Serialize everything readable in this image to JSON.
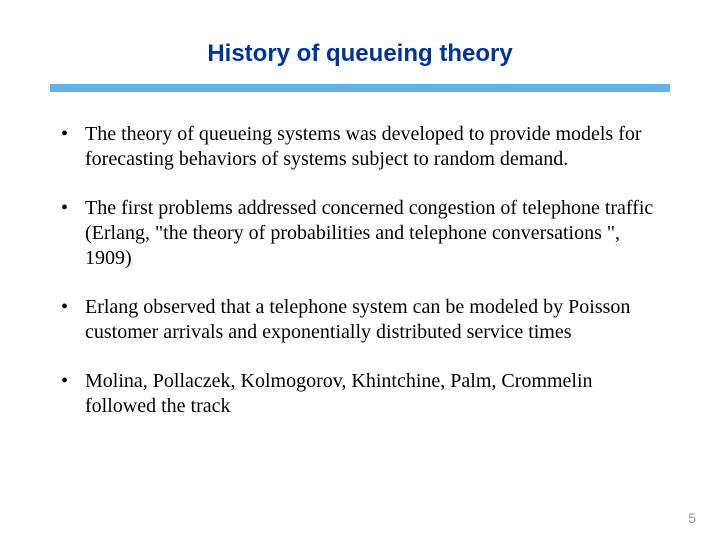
{
  "slide": {
    "title": "History of queueing theory",
    "title_color": "#003399",
    "title_fontsize": 24,
    "divider_color": "#66b2e8",
    "bullets": [
      "The theory of queueing systems was developed to provide models for forecasting behaviors of systems subject to random demand.",
      "The first problems addressed concerned congestion of telephone traffic (Erlang, \"the theory of probabilities and telephone conversations \", 1909)",
      "Erlang observed that a telephone system can be modeled by Poisson customer arrivals and exponentially distributed service times",
      "Molina, Pollaczek, Kolmogorov, Khintchine, Palm, Crommelin followed the track"
    ],
    "body_fontsize": 20,
    "body_color": "#000000",
    "page_number": "5",
    "page_number_color": "#999999",
    "background_color": "#ffffff"
  }
}
